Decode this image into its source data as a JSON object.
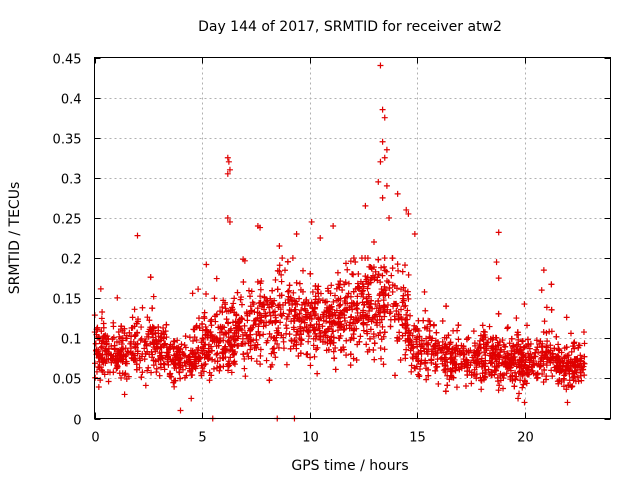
{
  "chart_data": {
    "type": "scatter",
    "title": "Day 144 of 2017, SRMTID for receiver atw2",
    "xlabel": "GPS time / hours",
    "ylabel": "SRMTID / TECUs",
    "xlim": [
      0,
      24
    ],
    "ylim": [
      0,
      0.45
    ],
    "xticks": [
      0,
      5,
      10,
      15,
      20
    ],
    "yticks": [
      0,
      0.05,
      0.1,
      0.15,
      0.2,
      0.25,
      0.3,
      0.35,
      0.4,
      0.45
    ],
    "xtick_labels": [
      "0",
      "5",
      "10",
      "15",
      "20"
    ],
    "ytick_labels": [
      "0",
      "0.05",
      "0.1",
      "0.15",
      "0.2",
      "0.25",
      "0.3",
      "0.35",
      "0.4",
      "0.45"
    ],
    "grid": true,
    "marker": "+",
    "series": [
      {
        "name": "SRMTID",
        "color": "#e00000",
        "approx_point_count": 2600,
        "time_range_hours": [
          0,
          22.8
        ],
        "baseline_profile": [
          {
            "x": 0,
            "y": 0.09
          },
          {
            "x": 1,
            "y": 0.08
          },
          {
            "x": 2,
            "y": 0.09
          },
          {
            "x": 3,
            "y": 0.09
          },
          {
            "x": 4,
            "y": 0.07
          },
          {
            "x": 5,
            "y": 0.09
          },
          {
            "x": 6,
            "y": 0.1
          },
          {
            "x": 7,
            "y": 0.11
          },
          {
            "x": 8,
            "y": 0.12
          },
          {
            "x": 9,
            "y": 0.13
          },
          {
            "x": 10,
            "y": 0.12
          },
          {
            "x": 11,
            "y": 0.12
          },
          {
            "x": 12,
            "y": 0.13
          },
          {
            "x": 13,
            "y": 0.15
          },
          {
            "x": 14,
            "y": 0.15
          },
          {
            "x": 15,
            "y": 0.09
          },
          {
            "x": 16,
            "y": 0.08
          },
          {
            "x": 17,
            "y": 0.07
          },
          {
            "x": 18,
            "y": 0.08
          },
          {
            "x": 19,
            "y": 0.07
          },
          {
            "x": 20,
            "y": 0.07
          },
          {
            "x": 21,
            "y": 0.08
          },
          {
            "x": 22,
            "y": 0.06
          },
          {
            "x": 22.8,
            "y": 0.07
          }
        ],
        "notable_points": [
          {
            "x": 13.3,
            "y": 0.44
          },
          {
            "x": 13.4,
            "y": 0.385
          },
          {
            "x": 13.5,
            "y": 0.375
          },
          {
            "x": 13.4,
            "y": 0.345
          },
          {
            "x": 13.6,
            "y": 0.335
          },
          {
            "x": 13.5,
            "y": 0.325
          },
          {
            "x": 13.3,
            "y": 0.32
          },
          {
            "x": 13.2,
            "y": 0.295
          },
          {
            "x": 13.6,
            "y": 0.29
          },
          {
            "x": 14.1,
            "y": 0.28
          },
          {
            "x": 13.4,
            "y": 0.275
          },
          {
            "x": 12.6,
            "y": 0.265
          },
          {
            "x": 14.5,
            "y": 0.26
          },
          {
            "x": 14.6,
            "y": 0.255
          },
          {
            "x": 13.7,
            "y": 0.25
          },
          {
            "x": 6.2,
            "y": 0.325
          },
          {
            "x": 6.25,
            "y": 0.32
          },
          {
            "x": 6.2,
            "y": 0.305
          },
          {
            "x": 6.3,
            "y": 0.31
          },
          {
            "x": 6.2,
            "y": 0.25
          },
          {
            "x": 6.3,
            "y": 0.245
          },
          {
            "x": 7.6,
            "y": 0.24
          },
          {
            "x": 7.7,
            "y": 0.238
          },
          {
            "x": 10.1,
            "y": 0.245
          },
          {
            "x": 11.1,
            "y": 0.24
          },
          {
            "x": 9.4,
            "y": 0.23
          },
          {
            "x": 2.0,
            "y": 0.228
          },
          {
            "x": 18.8,
            "y": 0.232
          },
          {
            "x": 18.7,
            "y": 0.195
          },
          {
            "x": 18.8,
            "y": 0.175
          },
          {
            "x": 20.9,
            "y": 0.185
          },
          {
            "x": 20.8,
            "y": 0.16
          },
          {
            "x": 8.6,
            "y": 0.215
          },
          {
            "x": 10.5,
            "y": 0.225
          },
          {
            "x": 14.9,
            "y": 0.23
          },
          {
            "x": 13.0,
            "y": 0.22
          },
          {
            "x": 4.0,
            "y": 0.01
          },
          {
            "x": 5.5,
            "y": 0.0
          },
          {
            "x": 8.5,
            "y": 0.0
          },
          {
            "x": 9.3,
            "y": 0.0
          },
          {
            "x": 22.0,
            "y": 0.02
          },
          {
            "x": 20.0,
            "y": 0.02
          },
          {
            "x": 19.7,
            "y": 0.025
          },
          {
            "x": 4.5,
            "y": 0.025
          },
          {
            "x": 1.4,
            "y": 0.03
          }
        ]
      }
    ]
  }
}
